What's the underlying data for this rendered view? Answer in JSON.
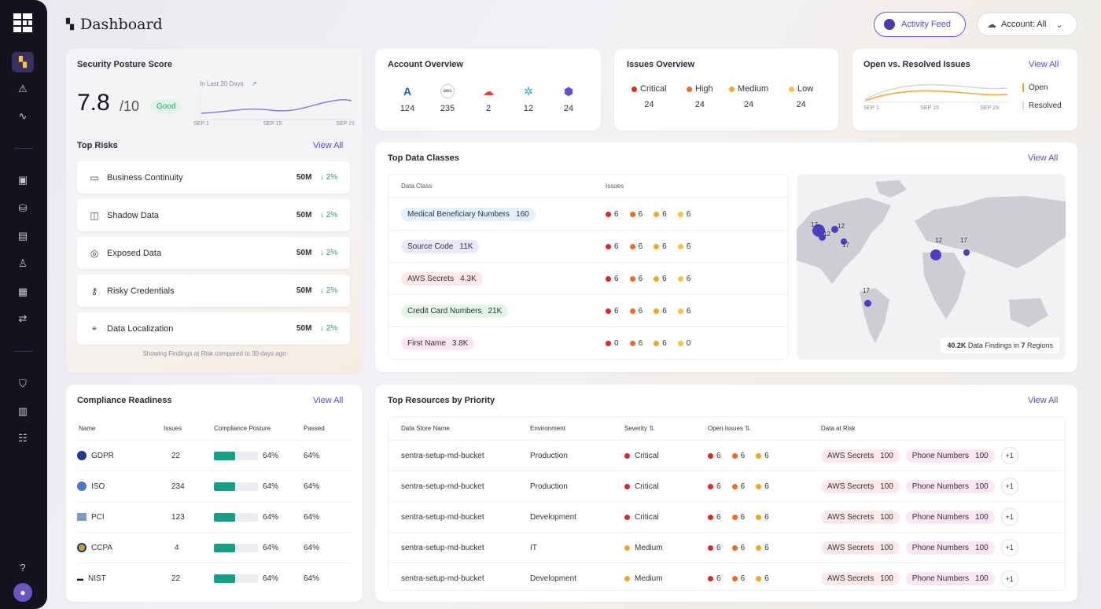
{
  "colors": {
    "accent": "#5b4ad0",
    "critical": "#d62b2b",
    "high": "#f06a2a",
    "medium": "#f5a524",
    "low": "#f5c542",
    "good": "#27a86a",
    "bar": "#14a086",
    "map_dot": "#4b3ec2"
  },
  "sidebar": {
    "icons": [
      "logo-grid-icon",
      "dashboard-icon",
      "alert-icon",
      "activity-icon",
      "database-icon",
      "storage-icon",
      "file-icon",
      "users-icon",
      "table-icon",
      "transfer-icon",
      "shield-icon",
      "report-icon",
      "checklist-icon",
      "help-icon",
      "user-avatar-icon"
    ]
  },
  "header": {
    "title": "Dashboard",
    "activity_feed": "Activity Feed",
    "account": "Account: All"
  },
  "security": {
    "title": "Security Posture Score",
    "score": "7.8",
    "out_of": "/10",
    "badge": "Good",
    "trend_label": "In Last 30 Days",
    "spark_x": [
      "SEP 1",
      "SEP 15",
      "SEP 21"
    ],
    "top_risks_title": "Top Risks",
    "view_all": "View All",
    "risks": [
      {
        "label": "Business Continuity",
        "value": "50M",
        "delta": "2%",
        "icon": "business-icon"
      },
      {
        "label": "Shadow Data",
        "value": "50M",
        "delta": "2%",
        "icon": "shadow-data-icon"
      },
      {
        "label": "Exposed Data",
        "value": "50M",
        "delta": "2%",
        "icon": "globe-icon"
      },
      {
        "label": "Risky Credentials",
        "value": "50M",
        "delta": "2%",
        "icon": "key-icon"
      },
      {
        "label": "Data Localization",
        "value": "50M",
        "delta": "2%",
        "icon": "location-icon"
      }
    ],
    "footer": "Showing Findings at Risk compared to 30 days ago"
  },
  "account_overview": {
    "title": "Account Overview",
    "items": [
      {
        "icon": "azure-icon",
        "count": "124"
      },
      {
        "icon": "aws-icon",
        "count": "235"
      },
      {
        "icon": "gcp-icon",
        "count": "2"
      },
      {
        "icon": "kubernetes-icon",
        "count": "12"
      },
      {
        "icon": "openshift-icon",
        "count": "24"
      }
    ]
  },
  "issues_overview": {
    "title": "Issues Overview",
    "items": [
      {
        "label": "Critical",
        "count": "24"
      },
      {
        "label": "High",
        "count": "24"
      },
      {
        "label": "Medium",
        "count": "24"
      },
      {
        "label": "Low",
        "count": "24"
      }
    ]
  },
  "open_resolved": {
    "title": "Open vs. Resolved Issues",
    "view_all": "View All",
    "legend": [
      "Open",
      "Resolved"
    ],
    "x": [
      "SEP 1",
      "SEP 15",
      "SEP 29"
    ]
  },
  "top_data_classes": {
    "title": "Top Data Classes",
    "view_all": "View All",
    "columns": [
      "Data Class",
      "Issues"
    ],
    "rows": [
      {
        "name": "Medical Beneficiary Numbers",
        "count": "160",
        "bg": "#e2f1fb",
        "sev": [
          "6",
          "6",
          "6",
          "6"
        ]
      },
      {
        "name": "Source Code",
        "count": "11K",
        "bg": "#ece8fb",
        "sev": [
          "6",
          "6",
          "6",
          "6"
        ]
      },
      {
        "name": "AWS Secrets",
        "count": "4.3K",
        "bg": "#fde9ec",
        "sev": [
          "6",
          "6",
          "6",
          "6"
        ]
      },
      {
        "name": "Credit Card Numbers",
        "count": "21K",
        "bg": "#e3f6ea",
        "sev": [
          "6",
          "6",
          "6",
          "6"
        ]
      },
      {
        "name": "First Name",
        "count": "3.8K",
        "bg": "#fbe6f3",
        "sev": [
          "0",
          "6",
          "6",
          "0"
        ]
      }
    ],
    "map_labels": [
      "17",
      "12",
      "12",
      "17",
      "17",
      "12",
      "17"
    ],
    "map_total": "40.2K",
    "map_text_a": "Data Findings in",
    "map_regions": "7",
    "map_text_b": "Regions"
  },
  "compliance": {
    "title": "Compliance Readiness",
    "view_all": "View All",
    "columns": [
      "Name",
      "Issues",
      "Compliance Posture",
      "Passed"
    ],
    "rows": [
      {
        "name": "GDPR",
        "issues": "22",
        "posture": "64%",
        "passed": "64%",
        "icon": "gdpr-icon"
      },
      {
        "name": "ISO",
        "issues": "234",
        "posture": "64%",
        "passed": "64%",
        "icon": "iso-icon"
      },
      {
        "name": "PCI",
        "issues": "123",
        "posture": "64%",
        "passed": "64%",
        "icon": "pci-icon"
      },
      {
        "name": "CCPA",
        "issues": "4",
        "posture": "64%",
        "passed": "64%",
        "icon": "ccpa-icon"
      },
      {
        "name": "NIST",
        "issues": "22",
        "posture": "64%",
        "passed": "64%",
        "icon": "nist-icon"
      }
    ]
  },
  "top_resources": {
    "title": "Top Resources by Priority",
    "view_all": "View All",
    "columns": [
      "Data Store Name",
      "Environment",
      "Severity",
      "Open Issues",
      "Data at Risk"
    ],
    "rows": [
      {
        "store": "sentra-setup-md-bucket",
        "env": "Production",
        "severity": "Critical",
        "issues": [
          "6",
          "6",
          "6"
        ],
        "risk1": "AWS Secrets",
        "risk1_n": "100",
        "risk2": "Phone Numbers",
        "risk2_n": "100",
        "more": "+1"
      },
      {
        "store": "sentra-setup-md-bucket",
        "env": "Production",
        "severity": "Critical",
        "issues": [
          "6",
          "6",
          "6"
        ],
        "risk1": "AWS Secrets",
        "risk1_n": "100",
        "risk2": "Phone Numbers",
        "risk2_n": "100",
        "more": "+1"
      },
      {
        "store": "sentra-setup-md-bucket",
        "env": "Development",
        "severity": "Critical",
        "issues": [
          "6",
          "6",
          "6"
        ],
        "risk1": "AWS Secrets",
        "risk1_n": "100",
        "risk2": "Phone Numbers",
        "risk2_n": "100",
        "more": "+1"
      },
      {
        "store": "sentra-setup-md-bucket",
        "env": "IT",
        "severity": "Medium",
        "issues": [
          "6",
          "6",
          "6"
        ],
        "risk1": "AWS Secrets",
        "risk1_n": "100",
        "risk2": "Phone Numbers",
        "risk2_n": "100",
        "more": "+1"
      },
      {
        "store": "sentra-setup-md-bucket",
        "env": "Development",
        "severity": "Medium",
        "issues": [
          "6",
          "6",
          "6"
        ],
        "risk1": "AWS Secrets",
        "risk1_n": "100",
        "risk2": "Phone Numbers",
        "risk2_n": "100",
        "more": "+1"
      }
    ]
  }
}
